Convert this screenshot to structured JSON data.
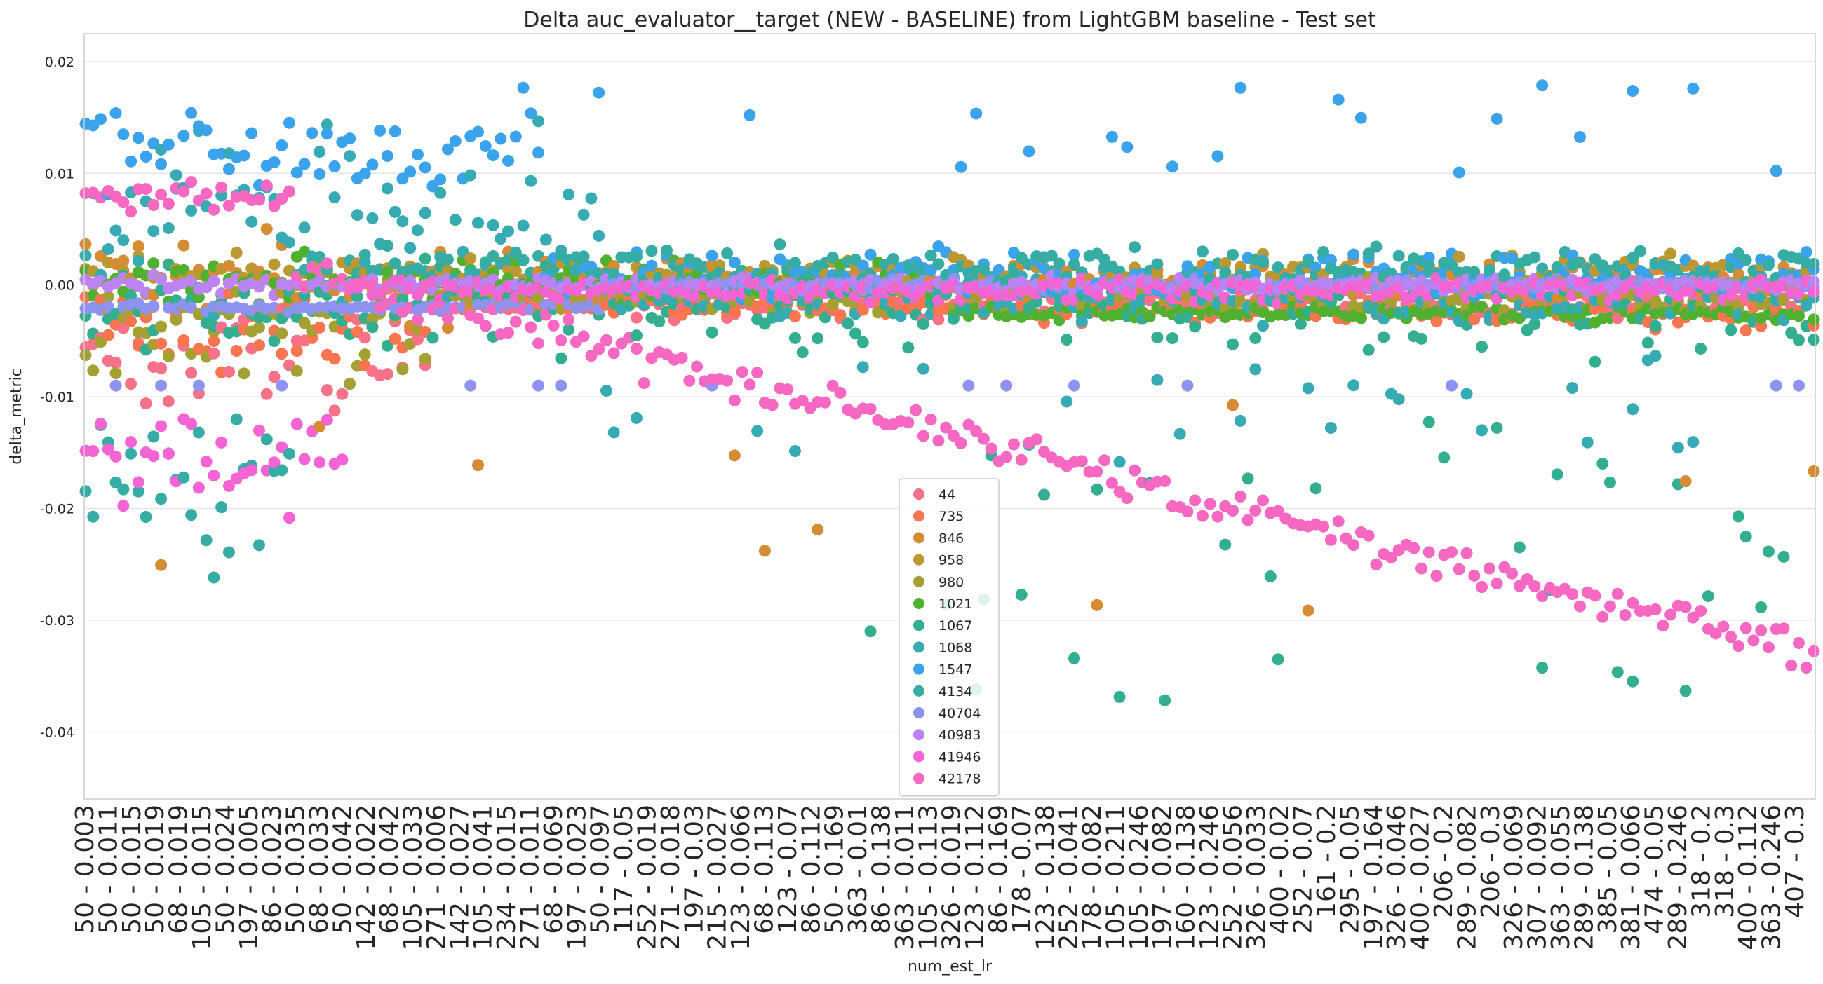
{
  "chart_data": {
    "type": "scatter",
    "title": "Delta auc_evaluator__target (NEW - BASELINE) from LightGBM baseline - Test set",
    "xlabel": "num_est_lr",
    "ylabel": "delta_metric",
    "ylim": [
      -0.046,
      0.0225
    ],
    "yticks": [
      -0.04,
      -0.03,
      -0.02,
      -0.01,
      0.0,
      0.01,
      0.02
    ],
    "ytick_labels": [
      "-0.04",
      "-0.03",
      "-0.02",
      "-0.01",
      "0.00",
      "0.01",
      "0.02"
    ],
    "grid": "horizontal",
    "legend_position": "bottom-center",
    "x_tick_labels": [
      "50 - 0.003",
      "50 - 0.011",
      "50 - 0.015",
      "50 - 0.019",
      "68 - 0.019",
      "105 - 0.015",
      "50 - 0.024",
      "197 - 0.005",
      "86 - 0.023",
      "50 - 0.035",
      "68 - 0.033",
      "50 - 0.042",
      "142 - 0.022",
      "68 - 0.042",
      "105 - 0.033",
      "271 - 0.006",
      "142 - 0.027",
      "105 - 0.041",
      "234 - 0.015",
      "271 - 0.011",
      "68 - 0.069",
      "197 - 0.023",
      "50 - 0.097",
      "117 - 0.05",
      "252 - 0.019",
      "271 - 0.018",
      "197 - 0.03",
      "215 - 0.027",
      "123 - 0.066",
      "68 - 0.113",
      "123 - 0.07",
      "86 - 0.112",
      "50 - 0.169",
      "363 - 0.01",
      "86 - 0.138",
      "363 - 0.011",
      "105 - 0.113",
      "326 - 0.019",
      "123 - 0.112",
      "86 - 0.169",
      "178 - 0.07",
      "123 - 0.138",
      "252 - 0.041",
      "178 - 0.082",
      "105 - 0.211",
      "105 - 0.246",
      "197 - 0.082",
      "160 - 0.138",
      "123 - 0.246",
      "252 - 0.056",
      "326 - 0.033",
      "400 - 0.02",
      "252 - 0.07",
      "161 - 0.2",
      "295 - 0.05",
      "197 - 0.164",
      "326 - 0.046",
      "400 - 0.027",
      "206 - 0.2",
      "289 - 0.082",
      "206 - 0.3",
      "326 - 0.069",
      "307 - 0.092",
      "363 - 0.055",
      "289 - 0.138",
      "385 - 0.05",
      "381 - 0.066",
      "474 - 0.05",
      "289 - 0.246",
      "318 - 0.2",
      "318 - 0.3",
      "400 - 0.112",
      "363 - 0.246",
      "407 - 0.3"
    ],
    "series": [
      {
        "name": "44",
        "color": "#f77189"
      },
      {
        "name": "735",
        "color": "#f7754f"
      },
      {
        "name": "846",
        "color": "#d58c32"
      },
      {
        "name": "958",
        "color": "#bb9832"
      },
      {
        "name": "980",
        "color": "#a4a031"
      },
      {
        "name": "1021",
        "color": "#50b131"
      },
      {
        "name": "1067",
        "color": "#34ae91"
      },
      {
        "name": "1068",
        "color": "#37abb4"
      },
      {
        "name": "1547",
        "color": "#3ba3ec"
      },
      {
        "name": "4134",
        "color": "#36ada4"
      },
      {
        "name": "40704",
        "color": "#8e93f2"
      },
      {
        "name": "40983",
        "color": "#bb83f4"
      },
      {
        "name": "41946",
        "color": "#f564d4"
      },
      {
        "name": "42178",
        "color": "#f668c2"
      }
    ]
  }
}
